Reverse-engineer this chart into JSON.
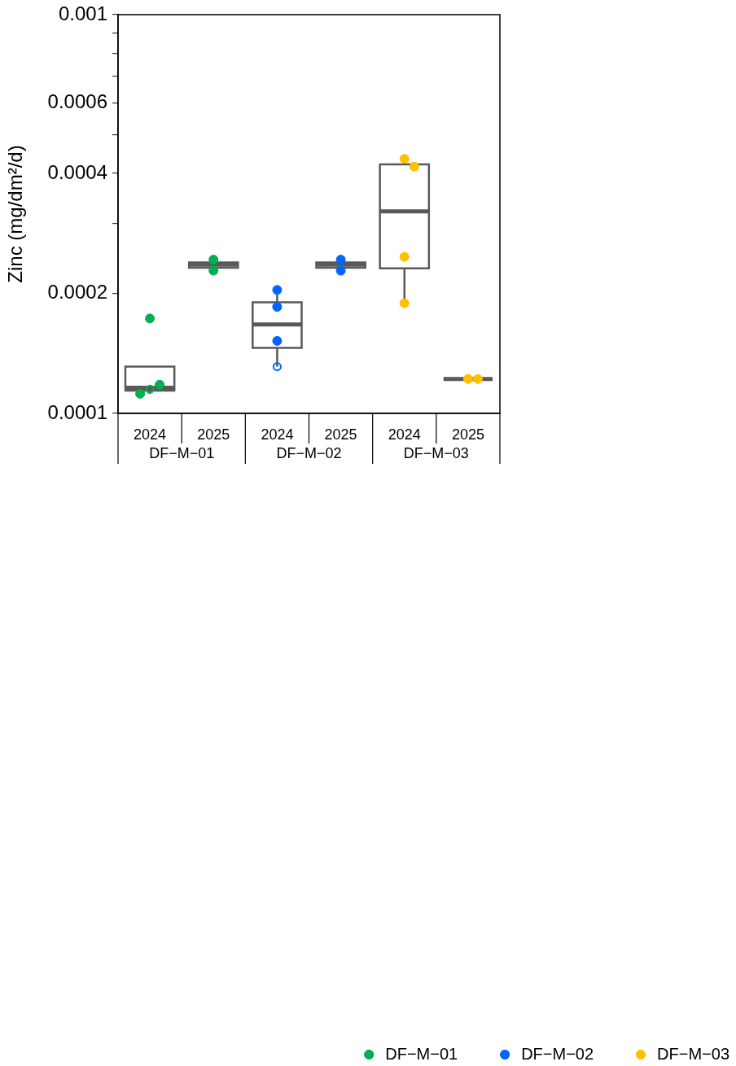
{
  "chart_data": {
    "type": "box",
    "ylabel": "Zinc (mg/dm²/d)",
    "categories": [
      "2024",
      "2025",
      "2024",
      "2025",
      "2024",
      "2025"
    ],
    "log": true,
    "ylim": [
      0.0001,
      0.001
    ],
    "yticks": [
      0.0001,
      0.0002,
      {
        "value": 0.0003,
        "label": null
      },
      0.0004,
      {
        "value": 0.0005,
        "label": null
      },
      0.0006,
      {
        "value": 0.0007,
        "label": null
      },
      {
        "value": 0.0008,
        "label": null
      },
      {
        "value": 0.0009,
        "label": null
      },
      0.001
    ],
    "legend": "bottom right",
    "marker": "circle",
    "series": [
      {
        "type": "box",
        "color": "#595959",
        "boxes": [
          {
            "low": 0.000112,
            "q1": 0.000114,
            "median": 0.000116,
            "q3": 0.000131,
            "high": 0.000131,
            "outliers": [
              0.000115
            ]
          },
          {
            "low": 0.000228,
            "q1": 0.000232,
            "median": 0.000236,
            "q3": 0.000239,
            "high": 0.000243
          },
          {
            "low": 0.000131,
            "q1": 0.000146,
            "median": 0.000167,
            "q3": 0.00019,
            "high": 0.000204,
            "outliers": [
              0.000131
            ]
          },
          {
            "low": 0.000228,
            "q1": 0.000232,
            "median": 0.000236,
            "q3": 0.000239,
            "high": 0.000243
          },
          {
            "low": 0.000189,
            "q1": 0.000231,
            "median": 0.000321,
            "q3": 0.000421,
            "high": 0.000435
          },
          {
            "low": 0.000122,
            "q1": 0.000122,
            "median": 0.000122,
            "q3": 0.000122,
            "high": 0.000122
          }
        ]
      },
      {
        "type": "scatter",
        "name": "DF−M−01",
        "color": "#00b050",
        "values": [
          0.000173,
          0.000243,
          null,
          null,
          null,
          null
        ]
      },
      {
        "type": "scatter",
        "color": "#00b050",
        "values": [
          0.000118,
          0.000228,
          null,
          null,
          null,
          null
        ]
      },
      {
        "type": "scatter",
        "color": "#00b050",
        "values": [
          0.000112,
          null,
          null,
          null,
          null,
          null
        ]
      },
      {
        "type": "scatter",
        "name": "DF−M−02",
        "color": "#0066ff",
        "values": [
          null,
          null,
          0.000204,
          0.000243,
          null,
          null
        ]
      },
      {
        "type": "scatter",
        "color": "#0066ff",
        "values": [
          null,
          null,
          0.000185,
          0.000228,
          null,
          null
        ]
      },
      {
        "type": "scatter",
        "color": "#0066ff",
        "values": [
          null,
          null,
          0.000152,
          null,
          null,
          null
        ]
      },
      {
        "type": "scatter",
        "name": "DF−M−03",
        "color": "#ffc000",
        "values": [
          null,
          null,
          null,
          null,
          0.000435,
          0.000122
        ]
      },
      {
        "type": "scatter",
        "color": "#ffc000",
        "values": [
          null,
          null,
          null,
          null,
          0.000416,
          0.000122
        ]
      },
      {
        "type": "scatter",
        "color": "#ffc000",
        "values": [
          null,
          null,
          null,
          null,
          0.000247,
          null
        ]
      },
      {
        "type": "scatter",
        "color": "#ffc000",
        "values": [
          null,
          null,
          null,
          null,
          0.000189,
          null
        ]
      }
    ]
  }
}
